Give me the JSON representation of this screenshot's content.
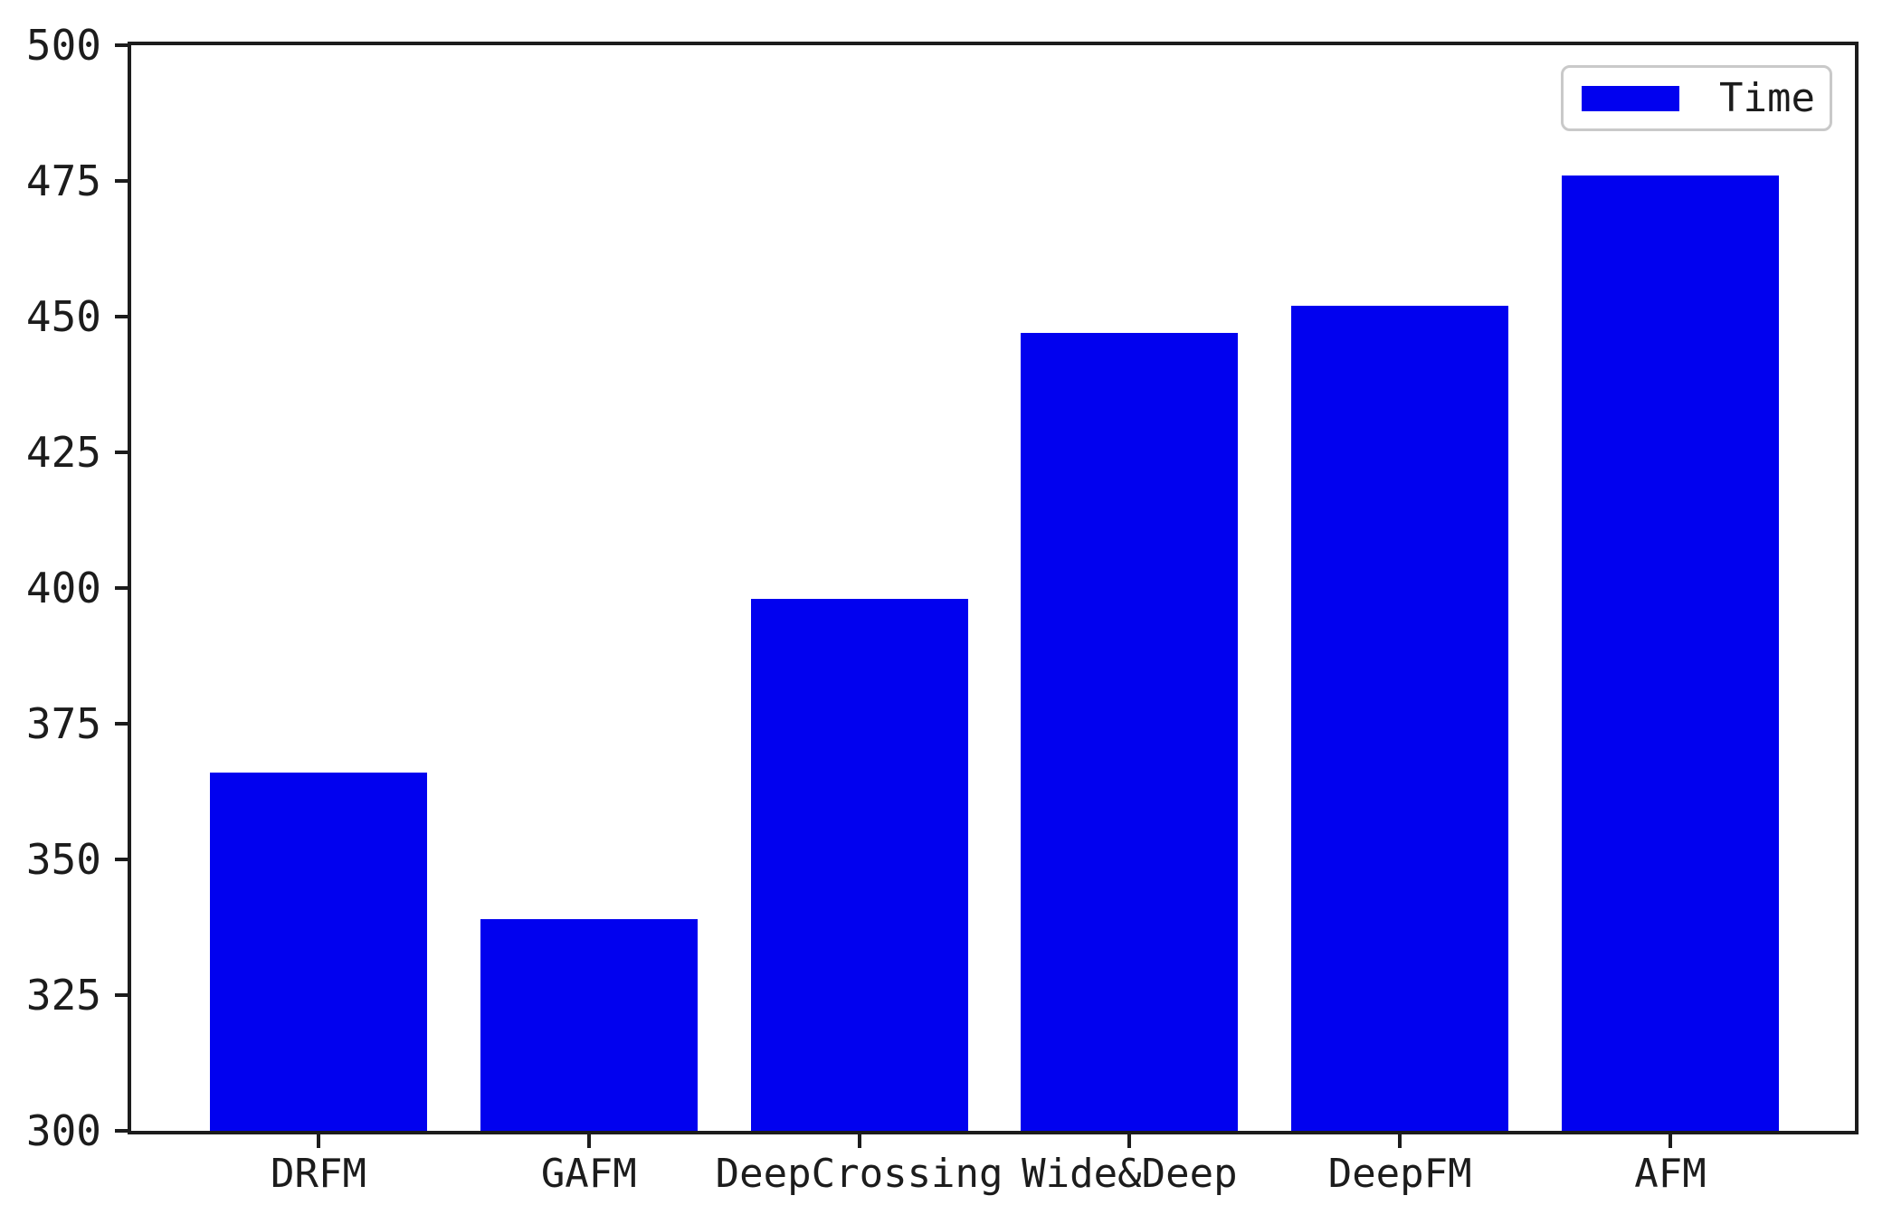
{
  "chart_data": {
    "type": "bar",
    "title": "",
    "xlabel": "",
    "ylabel": "",
    "categories": [
      "DRFM",
      "GAFM",
      "DeepCrossing",
      "Wide&Deep",
      "DeepFM",
      "AFM"
    ],
    "series": [
      {
        "name": "Time",
        "values": [
          366,
          339,
          398,
          447,
          452,
          476
        ]
      }
    ],
    "ylim": [
      300,
      500
    ],
    "yticks": [
      300,
      325,
      350,
      375,
      400,
      425,
      450,
      475,
      500
    ],
    "grid": false,
    "legend_position": "upper right",
    "legend": [
      "Time"
    ],
    "bar_color": "#0101ef",
    "axis_color": "#1c1c1c",
    "legend_border_color": "#c9c9c9"
  }
}
